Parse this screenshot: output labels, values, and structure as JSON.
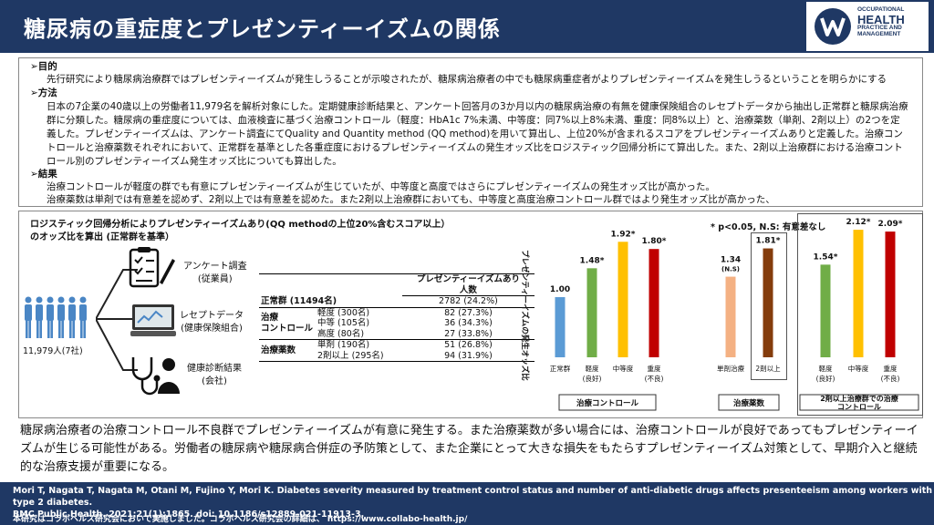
{
  "header": {
    "title": "糖尿病の重症度とプレゼンティーイズムの関係"
  },
  "logo": {
    "line1": "OCCUPATIONAL",
    "line2": "HEALTH",
    "line3": "PRACTICE AND",
    "line4": "MANAGEMENT"
  },
  "sections": {
    "purpose_h": "➢目的",
    "purpose": "先行研究により糖尿病治療群ではプレゼンティーイズムが発生しうることが示唆されたが、糖尿病治療者の中でも糖尿病重症者がよりプレゼンティーイズムを発生しうるということを明らかにする",
    "method_h": "➢方法",
    "method": "日本の7企業の40歳以上の労働者11,979名を解析対象にした。定期健康診断結果と、アンケート回答月の3か月以内の糖尿病治療の有無を健康保険組合のレセプトデータから抽出し正常群と糖尿病治療群に分類した。糖尿病の重症度については、血液検査に基づく治療コントロール（軽度：HbA1c 7%未満、中等度：同7%以上8%未満、重度：同8%以上）と、治療薬数（単剤、2剤以上）の2つを定義した。プレゼンティーイズムは、アンケート調査にてQuality and Quantity method (QQ method)を用いて算出し、上位20%が含まれるスコアをプレゼンティーイズムありと定義した。治療コントロールと治療薬数それぞれにおいて、正常群を基準とした各重症度におけるプレゼンティーイズムの発生オッズ比をロジスティック回帰分析にて算出した。また、2剤以上治療群における治療コントロール別のプレゼンティーイズム発生オッズ比についても算出した。",
    "result_h": "➢結果",
    "result1": "治療コントロールが軽度の群でも有意にプレゼンティーイズムが生じていたが、中等度と高度ではさらにプレゼンティーイズムの発生オッズ比が高かった。",
    "result2": "治療薬数は単剤では有意差を認めず、2剤以上では有意差を認めた。また2剤以上治療群においても、中等度と高度治療コントロール群ではより発生オッズ比が高かった、"
  },
  "figure": {
    "title_line1": "ロジスティック回帰分析によりプレゼンティーイズムあり(QQ methodの上位20%含むスコア以上）",
    "title_line2": "のオッズ比を算出 (正常群を基準）",
    "people_label": "11,979人(7社)",
    "src1_a": "アンケート調査",
    "src1_b": "(従業員)",
    "src2_a": "レセプトデータ",
    "src2_b": "(健康保険組合)",
    "src3_a": "健康診断結果",
    "src3_b": "(会社)",
    "sig_note": "* p<0.05, N.S: 有意差なし",
    "ylabel": "プレゼンティーイズムの発生オッズ比（正常群を基準）"
  },
  "table": {
    "header_line1": "プレゼンティーイズムあり",
    "header_line2": "人数",
    "normal_label": "正常群 (11494名)",
    "normal_value": "2782 (24.2%)",
    "control_label1": "治療",
    "control_label2": "コントロール",
    "mild_label": "軽度 (300名)",
    "mild_value": "82 (27.3%)",
    "moderate_label": "中等 (105名)",
    "moderate_value": "36 (34.3%)",
    "severe_label": "高度 (80名)",
    "severe_value": "27 (33.8%)",
    "drugs_label": "治療薬数",
    "single_label": "単剤 (190名)",
    "single_value": "51 (26.8%)",
    "multi_label": "2剤以上 (295名)",
    "multi_value": "94 (31.9%)"
  },
  "chart_data": [
    {
      "type": "bar",
      "categories": [
        "正常群",
        "軽度(良好)",
        "中等度",
        "重度(不良)"
      ],
      "values": [
        1.0,
        1.48,
        1.92,
        1.8
      ],
      "value_labels": [
        "1.00",
        "1.48*",
        "1.92*",
        "1.80*"
      ],
      "colors": [
        "#5b9bd5",
        "#70ad47",
        "#ffc000",
        "#c00000"
      ],
      "group_label": "治療コントロール",
      "ylabel": "プレゼンティーイズムの発生オッズ比（正常群を基準）"
    },
    {
      "type": "bar",
      "categories": [
        "単剤治療",
        "2剤以上"
      ],
      "values": [
        1.34,
        1.81
      ],
      "value_labels": [
        "1.34 (N.S)",
        "1.81*"
      ],
      "colors": [
        "#f4b183",
        "#843c0c"
      ],
      "group_label": "治療薬数"
    },
    {
      "type": "bar",
      "categories": [
        "軽度(良好)",
        "中等度",
        "重度(不良)"
      ],
      "values": [
        1.54,
        2.12,
        2.09
      ],
      "value_labels": [
        "1.54*",
        "2.12*",
        "2.09*"
      ],
      "colors": [
        "#70ad47",
        "#ffc000",
        "#c00000"
      ],
      "group_label": "2剤以上治療群での治療コントロール"
    }
  ],
  "conclusion": "糖尿病治療者の治療コントロール不良群でプレゼンティーイズムが有意に発生する。また治療薬数が多い場合には、治療コントロールが良好であってもプレゼンティーイズムが生じる可能性がある。労働者の糖尿病や糖尿病合併症の予防策として、また企業にとって大きな損失をもたらすプレゼンティーイズム対策として、早期介入と継続的な治療支援が重要になる。",
  "footer": {
    "cite_line1": "Mori T, Nagata T, Nagata M, Otani M, Fujino Y, Mori K. Diabetes severity measured by treatment control status and number of anti-diabetic drugs affects presenteeism among workers with type 2 diabetes.",
    "cite_line2": "BMC Public Health. 2021;21(1):1865.  doi: 10.1186/s12889-021-11913-3.",
    "note": "本研究はコラボヘルス研究会において実施しました。コラボヘルス研究会の詳細は、  https://www.collabo-health.jp/"
  }
}
